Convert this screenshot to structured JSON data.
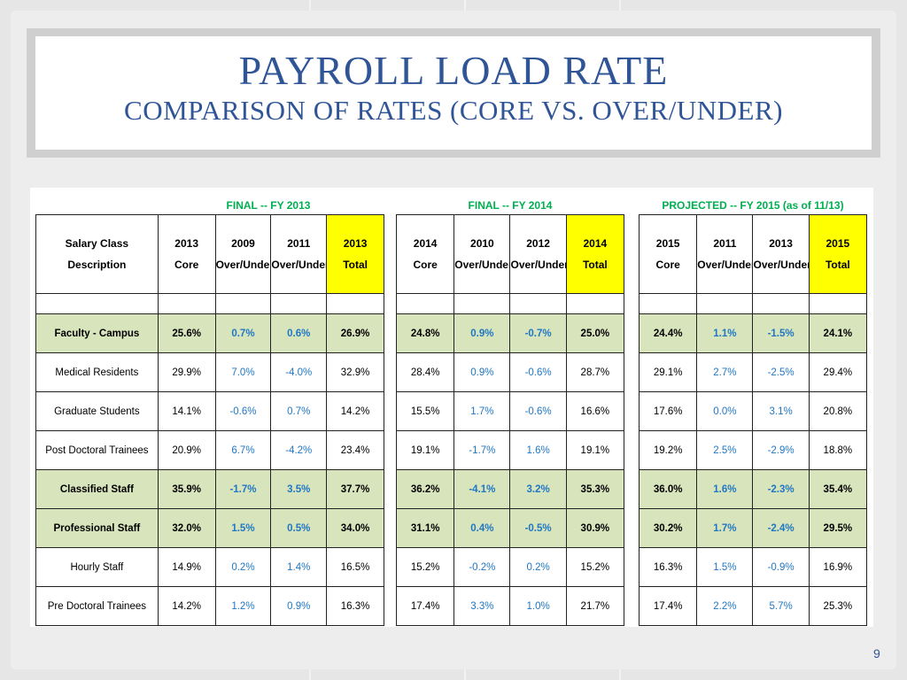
{
  "title": "PAYROLL LOAD RATE",
  "subtitle": "COMPARISON OF RATES (CORE VS. OVER/UNDER)",
  "page_number": "9",
  "colors": {
    "title": "#2f5597",
    "group_header": "#00b050",
    "highlight_total": "#ffff00",
    "row_highlight": "#d8e4bc",
    "over_under": "#1f77c4"
  },
  "groups": [
    {
      "header": "FINAL -- FY 2013",
      "columns": [
        {
          "l1": "2013",
          "l2": "Core"
        },
        {
          "l1": "2009",
          "l2": "Over/Under"
        },
        {
          "l1": "2011",
          "l2": "Over/Under"
        },
        {
          "l1": "2013",
          "l2": "Total"
        }
      ]
    },
    {
      "header": "FINAL -- FY 2014",
      "columns": [
        {
          "l1": "2014",
          "l2": "Core"
        },
        {
          "l1": "2010",
          "l2": "Over/Under"
        },
        {
          "l1": "2012",
          "l2": "Over/Under"
        },
        {
          "l1": "2014",
          "l2": "Total"
        }
      ]
    },
    {
      "header": "PROJECTED -- FY 2015 (as of 11/13)",
      "columns": [
        {
          "l1": "2015",
          "l2": "Core"
        },
        {
          "l1": "2011",
          "l2": "Over/Under"
        },
        {
          "l1": "2013",
          "l2": "Over/Under"
        },
        {
          "l1": "2015",
          "l2": "Total"
        }
      ]
    }
  ],
  "desc_header": {
    "l1": "Salary Class",
    "l2": "Description"
  },
  "rows": [
    {
      "label": "Faculty - Campus",
      "highlight": true,
      "g": [
        [
          "25.6%",
          "0.7%",
          "0.6%",
          "26.9%"
        ],
        [
          "24.8%",
          "0.9%",
          "-0.7%",
          "25.0%"
        ],
        [
          "24.4%",
          "1.1%",
          "-1.5%",
          "24.1%"
        ]
      ]
    },
    {
      "label": "Medical Residents",
      "highlight": false,
      "g": [
        [
          "29.9%",
          "7.0%",
          "-4.0%",
          "32.9%"
        ],
        [
          "28.4%",
          "0.9%",
          "-0.6%",
          "28.7%"
        ],
        [
          "29.1%",
          "2.7%",
          "-2.5%",
          "29.4%"
        ]
      ]
    },
    {
      "label": "Graduate Students",
      "highlight": false,
      "g": [
        [
          "14.1%",
          "-0.6%",
          "0.7%",
          "14.2%"
        ],
        [
          "15.5%",
          "1.7%",
          "-0.6%",
          "16.6%"
        ],
        [
          "17.6%",
          "0.0%",
          "3.1%",
          "20.8%"
        ]
      ]
    },
    {
      "label": "Post Doctoral Trainees",
      "highlight": false,
      "g": [
        [
          "20.9%",
          "6.7%",
          "-4.2%",
          "23.4%"
        ],
        [
          "19.1%",
          "-1.7%",
          "1.6%",
          "19.1%"
        ],
        [
          "19.2%",
          "2.5%",
          "-2.9%",
          "18.8%"
        ]
      ]
    },
    {
      "label": "Classified Staff",
      "highlight": true,
      "g": [
        [
          "35.9%",
          "-1.7%",
          "3.5%",
          "37.7%"
        ],
        [
          "36.2%",
          "-4.1%",
          "3.2%",
          "35.3%"
        ],
        [
          "36.0%",
          "1.6%",
          "-2.3%",
          "35.4%"
        ]
      ]
    },
    {
      "label": "Professional Staff",
      "highlight": true,
      "g": [
        [
          "32.0%",
          "1.5%",
          "0.5%",
          "34.0%"
        ],
        [
          "31.1%",
          "0.4%",
          "-0.5%",
          "30.9%"
        ],
        [
          "30.2%",
          "1.7%",
          "-2.4%",
          "29.5%"
        ]
      ]
    },
    {
      "label": "Hourly Staff",
      "highlight": false,
      "g": [
        [
          "14.9%",
          "0.2%",
          "1.4%",
          "16.5%"
        ],
        [
          "15.2%",
          "-0.2%",
          "0.2%",
          "15.2%"
        ],
        [
          "16.3%",
          "1.5%",
          "-0.9%",
          "16.9%"
        ]
      ]
    },
    {
      "label": "Pre Doctoral Trainees",
      "highlight": false,
      "g": [
        [
          "14.2%",
          "1.2%",
          "0.9%",
          "16.3%"
        ],
        [
          "17.4%",
          "3.3%",
          "1.0%",
          "21.7%"
        ],
        [
          "17.4%",
          "2.2%",
          "5.7%",
          "25.3%"
        ]
      ]
    }
  ]
}
